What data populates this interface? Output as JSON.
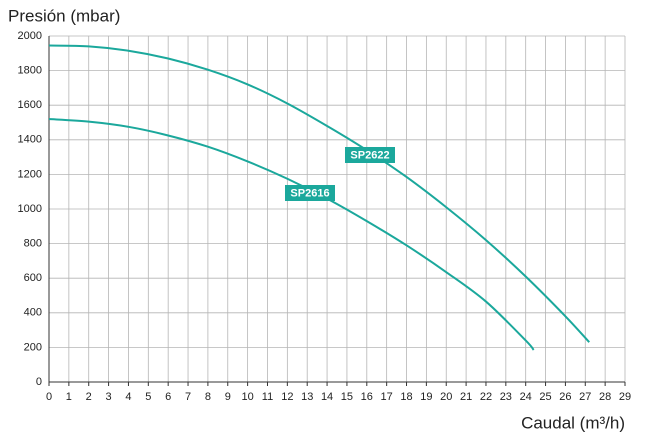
{
  "chart_data": {
    "type": "line",
    "y_label": "Presión (mbar)",
    "x_label": "Caudal (m³/h)",
    "xlim": [
      0,
      29
    ],
    "ylim": [
      0,
      2000
    ],
    "xticks": [
      0,
      1,
      2,
      3,
      4,
      5,
      6,
      7,
      8,
      9,
      10,
      11,
      12,
      13,
      14,
      15,
      16,
      17,
      18,
      19,
      20,
      21,
      22,
      23,
      24,
      25,
      26,
      27,
      28,
      29
    ],
    "yticks": [
      0,
      200,
      400,
      600,
      800,
      1000,
      1200,
      1400,
      1600,
      1800,
      2000
    ],
    "grid": true,
    "series": [
      {
        "name": "SP2622",
        "color": "#1ba89c",
        "x": [
          0,
          2,
          4,
          6,
          8,
          10,
          12,
          14,
          16,
          18,
          20,
          22,
          24,
          26,
          27.2
        ],
        "values": [
          1945,
          1940,
          1915,
          1870,
          1805,
          1720,
          1610,
          1480,
          1340,
          1185,
          1010,
          820,
          610,
          380,
          230
        ]
      },
      {
        "name": "SP2616",
        "color": "#1ba89c",
        "x": [
          0,
          2,
          4,
          6,
          8,
          10,
          12,
          14,
          16,
          18,
          20,
          22,
          24,
          24.4
        ],
        "values": [
          1520,
          1505,
          1475,
          1425,
          1360,
          1275,
          1175,
          1060,
          930,
          790,
          635,
          465,
          240,
          185
        ]
      }
    ]
  }
}
